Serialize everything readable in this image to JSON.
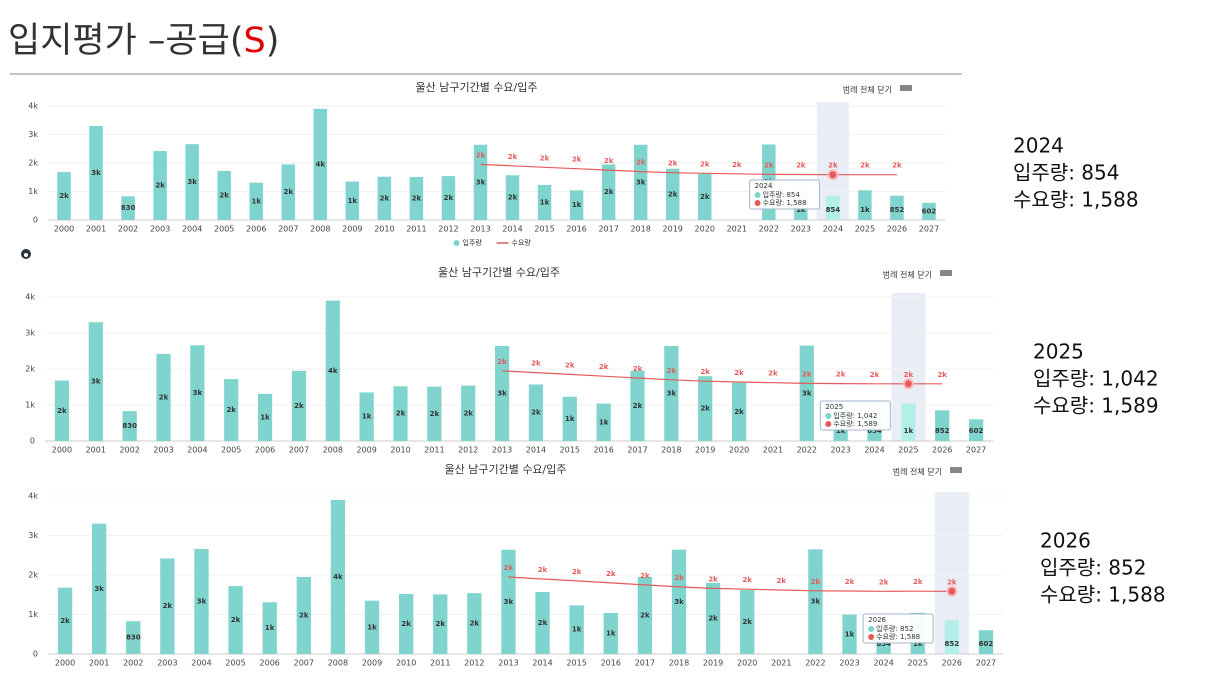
{
  "slide": {
    "title_parts": [
      "입지평가 –공급(",
      "S",
      ")"
    ],
    "notes": [
      {
        "year": "2024",
        "lines": [
          "입주량: 854",
          "수요량: 1,588"
        ]
      },
      {
        "year": "2025",
        "lines": [
          "입주량: 1,042",
          "수요량: 1,589"
        ]
      },
      {
        "year": "2026",
        "lines": [
          "입주량: 852",
          "수요량: 1,588"
        ]
      }
    ]
  },
  "chart_data": [
    {
      "type": "bar",
      "title": "울산 남구기간별 수요/입주",
      "button": "범례 전체 닫기",
      "legend": "bottom",
      "grid": true,
      "categories": [
        "2000",
        "2001",
        "2002",
        "2003",
        "2004",
        "2005",
        "2006",
        "2007",
        "2008",
        "2009",
        "2010",
        "2011",
        "2012",
        "2013",
        "2014",
        "2015",
        "2016",
        "2017",
        "2018",
        "2019",
        "2020",
        "2021",
        "2022",
        "2023",
        "2024",
        "2025",
        "2026",
        "2027"
      ],
      "ylim": [
        0,
        4000
      ],
      "yticks": [
        0,
        {
          "value": 1000,
          "label": "1k"
        },
        {
          "value": 2000,
          "label": "2k"
        },
        {
          "value": 3000,
          "label": "3k"
        },
        {
          "value": 4000,
          "label": "4k"
        }
      ],
      "series": [
        {
          "name": "입주량",
          "color": "#7fd4cd",
          "values": [
            1680,
            3300,
            830,
            2420,
            2660,
            1720,
            1310,
            1950,
            3900,
            1350,
            1520,
            1510,
            1540,
            2640,
            1570,
            1230,
            1040,
            1950,
            2640,
            1800,
            1620,
            null,
            2650,
            1000,
            854,
            1042,
            852,
            602
          ],
          "value_labels": [
            "2k",
            "3k",
            "830",
            "2k",
            "3k",
            "2k",
            "1k",
            "2k",
            "4k",
            "1k",
            "2k",
            "2k",
            "2k",
            "3k",
            "2k",
            "1k",
            "1k",
            "2k",
            "3k",
            "2k",
            "2k",
            null,
            "3k",
            "1k",
            "854",
            "1k",
            "852",
            "602"
          ]
        },
        {
          "name": "수요량",
          "color": "#e35b5b",
          "values": [
            null,
            null,
            null,
            null,
            null,
            null,
            null,
            null,
            null,
            null,
            null,
            null,
            null,
            1950,
            1900,
            1850,
            1800,
            1750,
            1700,
            1660,
            1640,
            1620,
            1600,
            1595,
            1588,
            1589,
            1588,
            null
          ],
          "value_labels": [
            null,
            null,
            null,
            null,
            null,
            null,
            null,
            null,
            null,
            null,
            null,
            null,
            null,
            "2k",
            "2k",
            "2k",
            "2k",
            "2k",
            "2k",
            "2k",
            "2k",
            "2k",
            "2k",
            "2k",
            "2k",
            "2k",
            "2k",
            null
          ]
        }
      ],
      "tooltip": {
        "title": "2024",
        "rows": [
          "입주량: 854",
          "수요량: 1,588"
        ]
      }
    },
    {
      "type": "bar",
      "title": "울산 남구기간별 수요/입주",
      "button": "범례 전체 닫기",
      "grid": true,
      "categories": [
        "2000",
        "2001",
        "2002",
        "2003",
        "2004",
        "2005",
        "2006",
        "2007",
        "2008",
        "2009",
        "2010",
        "2011",
        "2012",
        "2013",
        "2014",
        "2015",
        "2016",
        "2017",
        "2018",
        "2019",
        "2020",
        "2021",
        "2022",
        "2023",
        "2024",
        "2025",
        "2026",
        "2027"
      ],
      "ylim": [
        0,
        4000
      ],
      "yticks": [
        0,
        {
          "value": 1000,
          "label": "1k"
        },
        {
          "value": 2000,
          "label": "2k"
        },
        {
          "value": 3000,
          "label": "3k"
        },
        {
          "value": 4000,
          "label": "4k"
        }
      ],
      "series": [
        {
          "name": "입주량",
          "color": "#7fd4cd",
          "values": [
            1680,
            3300,
            830,
            2420,
            2660,
            1720,
            1310,
            1950,
            3900,
            1350,
            1520,
            1510,
            1540,
            2640,
            1570,
            1230,
            1040,
            1950,
            2640,
            1800,
            1620,
            null,
            2650,
            1000,
            854,
            1042,
            852,
            602
          ],
          "value_labels": [
            "2k",
            "3k",
            "830",
            "2k",
            "3k",
            "2k",
            "1k",
            "2k",
            "4k",
            "1k",
            "2k",
            "2k",
            "2k",
            "3k",
            "2k",
            "1k",
            "1k",
            "2k",
            "3k",
            "2k",
            "2k",
            null,
            "3k",
            "1k",
            "854",
            "1k",
            "852",
            "602"
          ]
        },
        {
          "name": "수요량",
          "color": "#e35b5b",
          "values": [
            null,
            null,
            null,
            null,
            null,
            null,
            null,
            null,
            null,
            null,
            null,
            null,
            null,
            1950,
            1900,
            1850,
            1800,
            1750,
            1700,
            1660,
            1640,
            1620,
            1600,
            1595,
            1588,
            1589,
            1588,
            null
          ],
          "value_labels": [
            null,
            null,
            null,
            null,
            null,
            null,
            null,
            null,
            null,
            null,
            null,
            null,
            null,
            "2k",
            "2k",
            "2k",
            "2k",
            "2k",
            "2k",
            "2k",
            "2k",
            "2k",
            "2k",
            "2k",
            "2k",
            "2k",
            "2k",
            null
          ]
        }
      ],
      "tooltip": {
        "title": "2025",
        "rows": [
          "입주량: 1,042",
          "수요량: 1,589"
        ]
      }
    },
    {
      "type": "bar",
      "title": "울산 남구기간별 수요/입주",
      "button": "범례 전체 닫기",
      "grid": true,
      "categories": [
        "2000",
        "2001",
        "2002",
        "2003",
        "2004",
        "2005",
        "2006",
        "2007",
        "2008",
        "2009",
        "2010",
        "2011",
        "2012",
        "2013",
        "2014",
        "2015",
        "2016",
        "2017",
        "2018",
        "2019",
        "2020",
        "2021",
        "2022",
        "2023",
        "2024",
        "2025",
        "2026",
        "2027"
      ],
      "ylim": [
        0,
        4000
      ],
      "yticks": [
        0,
        {
          "value": 1000,
          "label": "1k"
        },
        {
          "value": 2000,
          "label": "2k"
        },
        {
          "value": 3000,
          "label": "3k"
        },
        {
          "value": 4000,
          "label": "4k"
        }
      ],
      "series": [
        {
          "name": "입주량",
          "color": "#7fd4cd",
          "values": [
            1680,
            3300,
            830,
            2420,
            2660,
            1720,
            1310,
            1950,
            3900,
            1350,
            1520,
            1510,
            1540,
            2640,
            1570,
            1230,
            1040,
            1950,
            2640,
            1800,
            1620,
            null,
            2650,
            1000,
            854,
            1042,
            852,
            602
          ],
          "value_labels": [
            "2k",
            "3k",
            "830",
            "2k",
            "3k",
            "2k",
            "1k",
            "2k",
            "4k",
            "1k",
            "2k",
            "2k",
            "2k",
            "3k",
            "2k",
            "1k",
            "1k",
            "2k",
            "3k",
            "2k",
            "2k",
            null,
            "3k",
            "1k",
            "854",
            "1k",
            "852",
            "602"
          ]
        },
        {
          "name": "수요량",
          "color": "#e35b5b",
          "values": [
            null,
            null,
            null,
            null,
            null,
            null,
            null,
            null,
            null,
            null,
            null,
            null,
            null,
            1950,
            1900,
            1850,
            1800,
            1750,
            1700,
            1660,
            1640,
            1620,
            1600,
            1595,
            1588,
            1589,
            1588,
            null
          ],
          "value_labels": [
            null,
            null,
            null,
            null,
            null,
            null,
            null,
            null,
            null,
            null,
            null,
            null,
            null,
            "2k",
            "2k",
            "2k",
            "2k",
            "2k",
            "2k",
            "2k",
            "2k",
            "2k",
            "2k",
            "2k",
            "2k",
            "2k",
            "2k",
            null
          ]
        }
      ],
      "tooltip": {
        "title": "2026",
        "rows": [
          "입주량: 852",
          "수요량: 1,588"
        ]
      }
    }
  ]
}
